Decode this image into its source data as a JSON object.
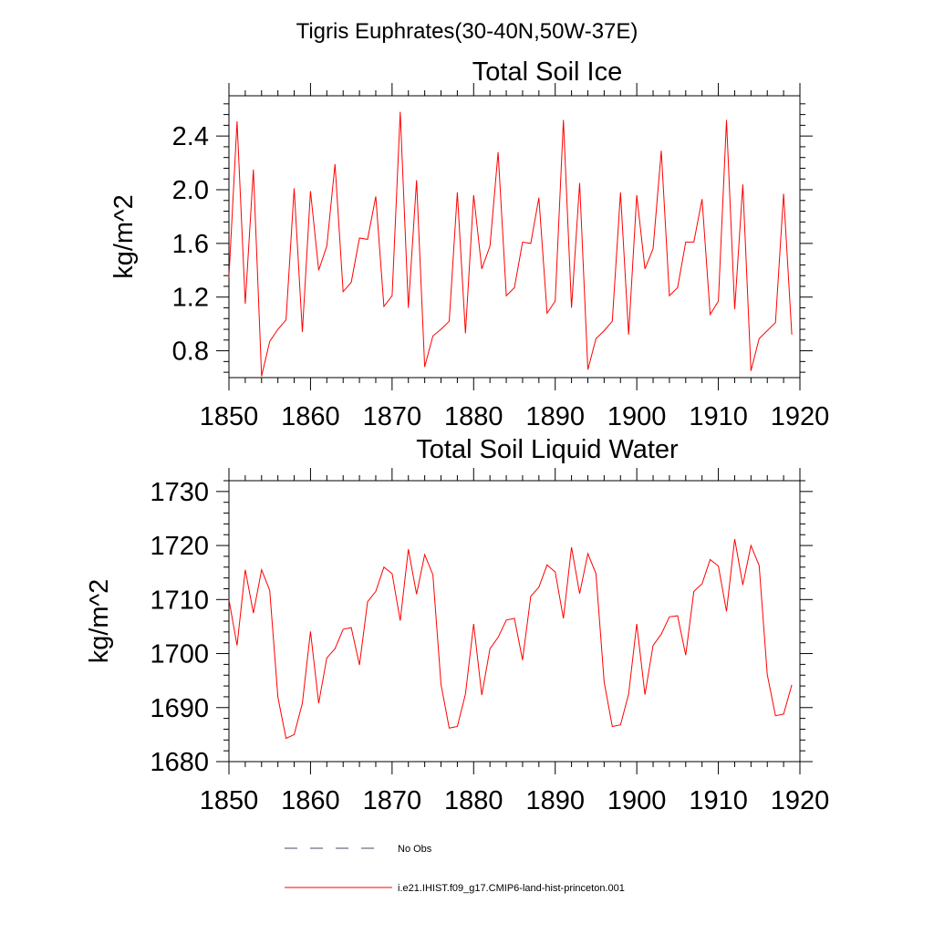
{
  "main_title": "Tigris Euphrates(30-40N,50W-37E)",
  "chart_data": [
    {
      "type": "line",
      "title": "Total Soil Ice",
      "ylabel": "kg/m^2",
      "xlabel": "",
      "xlim": [
        1850,
        1920
      ],
      "ylim": [
        0.6,
        2.7
      ],
      "xticks": [
        1850,
        1860,
        1870,
        1880,
        1890,
        1900,
        1910,
        1920
      ],
      "xtick_labels": [
        "1850",
        "1860",
        "1870",
        "1880",
        "1890",
        "1900",
        "1910",
        "1920"
      ],
      "yticks": [
        0.8,
        1.2,
        1.6,
        2.0,
        2.4
      ],
      "ytick_labels": [
        "0.8",
        "1.2",
        "1.6",
        "2.0",
        "2.4"
      ],
      "grid": false,
      "series": [
        {
          "name": "i.e21.IHIST.f09_g17.CMIP6-land-hist-princeton.001",
          "color": "#ff0000",
          "x": [
            1850,
            1851,
            1852,
            1853,
            1854,
            1855,
            1856,
            1857,
            1858,
            1859,
            1860,
            1861,
            1862,
            1863,
            1864,
            1865,
            1866,
            1867,
            1868,
            1869,
            1870,
            1871,
            1872,
            1873,
            1874,
            1875,
            1876,
            1877,
            1878,
            1879,
            1880,
            1881,
            1882,
            1883,
            1884,
            1885,
            1886,
            1887,
            1888,
            1889,
            1890,
            1891,
            1892,
            1893,
            1894,
            1895,
            1896,
            1897,
            1898,
            1899,
            1900,
            1901,
            1902,
            1903,
            1904,
            1905,
            1906,
            1907,
            1908,
            1909,
            1910,
            1911,
            1912,
            1913,
            1914,
            1915,
            1916,
            1917,
            1918,
            1919
          ],
          "values": [
            1.35,
            2.51,
            1.15,
            2.15,
            0.61,
            0.87,
            0.96,
            1.03,
            2.01,
            0.94,
            1.99,
            1.4,
            1.58,
            2.19,
            1.24,
            1.31,
            1.64,
            1.63,
            1.95,
            1.13,
            1.21,
            2.58,
            1.12,
            2.07,
            0.68,
            0.91,
            0.96,
            1.02,
            1.98,
            0.93,
            1.96,
            1.41,
            1.58,
            2.28,
            1.21,
            1.27,
            1.61,
            1.6,
            1.94,
            1.08,
            1.17,
            2.52,
            1.12,
            2.05,
            0.66,
            0.89,
            0.95,
            1.02,
            1.98,
            0.92,
            1.96,
            1.41,
            1.56,
            2.29,
            1.21,
            1.27,
            1.61,
            1.61,
            1.93,
            1.07,
            1.17,
            2.52,
            1.11,
            2.04,
            0.65,
            0.89,
            0.95,
            1.01,
            1.97,
            0.92
          ]
        }
      ]
    },
    {
      "type": "line",
      "title": "Total Soil Liquid Water",
      "ylabel": "kg/m^2",
      "xlabel": "",
      "xlim": [
        1850,
        1920
      ],
      "ylim": [
        1680,
        1732
      ],
      "xticks": [
        1850,
        1860,
        1870,
        1880,
        1890,
        1900,
        1910,
        1920
      ],
      "xtick_labels": [
        "1850",
        "1860",
        "1870",
        "1880",
        "1890",
        "1900",
        "1910",
        "1920"
      ],
      "yticks": [
        1680,
        1690,
        1700,
        1710,
        1720,
        1730
      ],
      "ytick_labels": [
        "1680",
        "1690",
        "1700",
        "1710",
        "1720",
        "1730"
      ],
      "grid": false,
      "series": [
        {
          "name": "i.e21.IHIST.f09_g17.CMIP6-land-hist-princeton.001",
          "color": "#ff0000",
          "x": [
            1850,
            1851,
            1852,
            1853,
            1854,
            1855,
            1856,
            1857,
            1858,
            1859,
            1860,
            1861,
            1862,
            1863,
            1864,
            1865,
            1866,
            1867,
            1868,
            1869,
            1870,
            1871,
            1872,
            1873,
            1874,
            1875,
            1876,
            1877,
            1878,
            1879,
            1880,
            1881,
            1882,
            1883,
            1884,
            1885,
            1886,
            1887,
            1888,
            1889,
            1890,
            1891,
            1892,
            1893,
            1894,
            1895,
            1896,
            1897,
            1898,
            1899,
            1900,
            1901,
            1902,
            1903,
            1904,
            1905,
            1906,
            1907,
            1908,
            1909,
            1910,
            1911,
            1912,
            1913,
            1914,
            1915,
            1916,
            1917,
            1918,
            1919
          ],
          "values": [
            1710.0,
            1701.5,
            1715.5,
            1707.5,
            1715.5,
            1711.7,
            1691.9,
            1684.3,
            1685.0,
            1690.8,
            1704.1,
            1690.8,
            1699.2,
            1700.9,
            1704.5,
            1704.8,
            1697.9,
            1709.6,
            1711.5,
            1716.0,
            1714.8,
            1706.1,
            1719.3,
            1711.0,
            1718.3,
            1714.6,
            1694.3,
            1686.2,
            1686.5,
            1692.5,
            1705.5,
            1692.3,
            1700.9,
            1703.0,
            1706.2,
            1706.5,
            1698.8,
            1710.6,
            1712.3,
            1716.4,
            1715.1,
            1706.5,
            1719.7,
            1711.1,
            1718.5,
            1714.8,
            1694.7,
            1686.5,
            1686.8,
            1692.5,
            1705.5,
            1692.4,
            1701.5,
            1703.6,
            1706.8,
            1707.0,
            1699.7,
            1711.5,
            1712.9,
            1717.4,
            1716.2,
            1707.8,
            1721.2,
            1712.7,
            1720.0,
            1716.3,
            1696.1,
            1688.5,
            1688.8,
            1694.2
          ]
        }
      ]
    }
  ],
  "legend": {
    "placement": "bottom-center",
    "items": [
      {
        "label": "No Obs",
        "color": "#4a4a6a",
        "style": "dashed"
      },
      {
        "label": "i.e21.IHIST.f09_g17.CMIP6-land-hist-princeton.001",
        "color": "#ff0000",
        "style": "solid"
      }
    ]
  }
}
